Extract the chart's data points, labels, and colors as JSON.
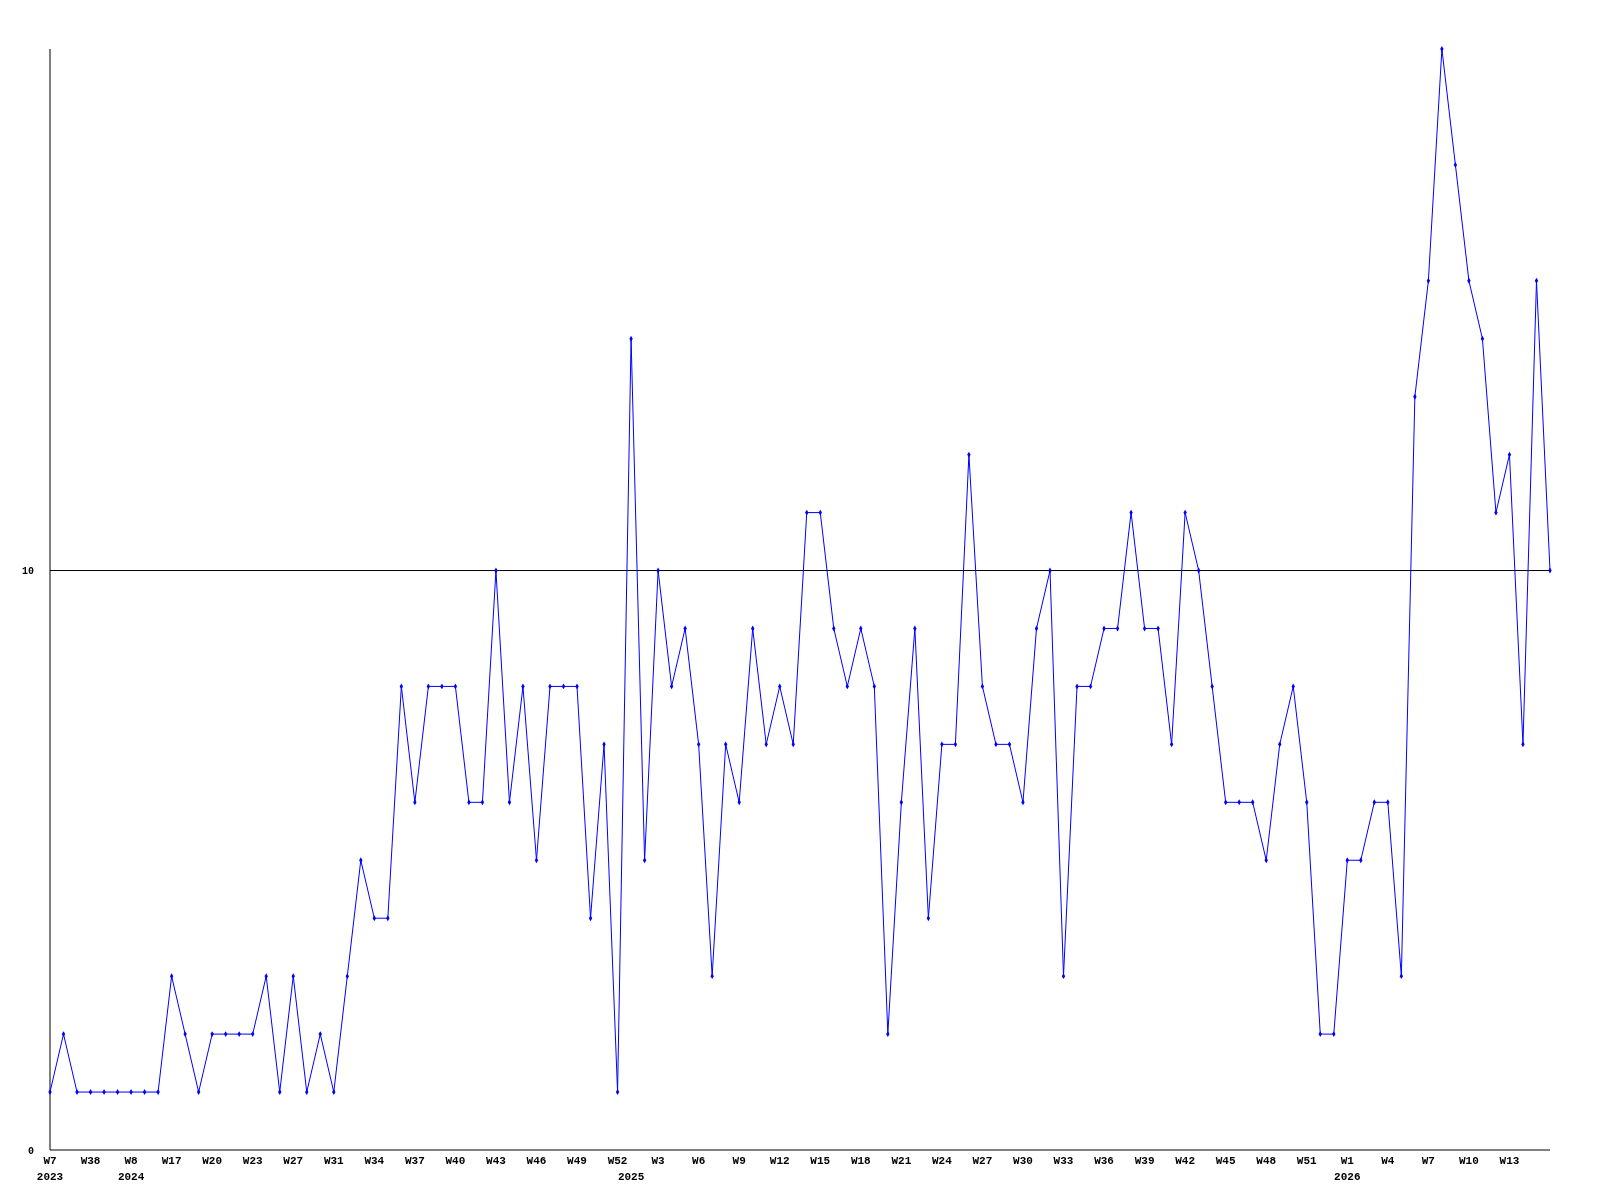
{
  "chart_data": {
    "type": "line",
    "categories": [
      "W7\n2023",
      null,
      null,
      "W38",
      null,
      null,
      "W8\n2024",
      null,
      null,
      "W17",
      null,
      null,
      "W20",
      null,
      null,
      "W23",
      null,
      null,
      "W27",
      null,
      null,
      "W31",
      null,
      null,
      "W34",
      null,
      null,
      "W37",
      null,
      null,
      "W40",
      null,
      null,
      "W43",
      null,
      null,
      "W46",
      null,
      null,
      "W49",
      null,
      null,
      "W52",
      "\n2025",
      null,
      "W3",
      null,
      null,
      "W6",
      null,
      null,
      "W9",
      null,
      null,
      "W12",
      null,
      null,
      "W15",
      null,
      null,
      "W18",
      null,
      null,
      "W21",
      null,
      null,
      "W24",
      null,
      null,
      "W27",
      null,
      null,
      "W30",
      null,
      null,
      "W33",
      null,
      null,
      "W36",
      null,
      null,
      "W39",
      null,
      null,
      "W42",
      null,
      null,
      "W45",
      null,
      null,
      "W48",
      null,
      null,
      "W51",
      null,
      null,
      "W1\n2026",
      null,
      null,
      "W4",
      null,
      null,
      "W7",
      null,
      null,
      "W10",
      null,
      null,
      "W13",
      null,
      null,
      null
    ],
    "series": [
      {
        "color": "#0000ff",
        "values": [
          1,
          2,
          1,
          1,
          1,
          1,
          1,
          1,
          1,
          3,
          2,
          1,
          2,
          2,
          2,
          2,
          3,
          1,
          3,
          1,
          2,
          1,
          3,
          5,
          4,
          4,
          8,
          6,
          8,
          8,
          8,
          6,
          6,
          10,
          6,
          8,
          5,
          8,
          8,
          8,
          4,
          7,
          1,
          14,
          5,
          10,
          8,
          9,
          7,
          3,
          7,
          6,
          9,
          7,
          8,
          7,
          11,
          11,
          9,
          8,
          9,
          8,
          2,
          6,
          9,
          4,
          7,
          7,
          12,
          8,
          7,
          7,
          6,
          9,
          10,
          3,
          8,
          8,
          9,
          9,
          11,
          9,
          9,
          7,
          11,
          10,
          8,
          6,
          6,
          6,
          5,
          7,
          8,
          6,
          2,
          2,
          5,
          5,
          6,
          6,
          3,
          13,
          15,
          19,
          17,
          15,
          14,
          11,
          12,
          7,
          15,
          10
        ]
      }
    ],
    "ylim": [
      0,
      19
    ],
    "yticks": [
      0,
      10
    ],
    "grid": "y",
    "marker": "diamond"
  }
}
